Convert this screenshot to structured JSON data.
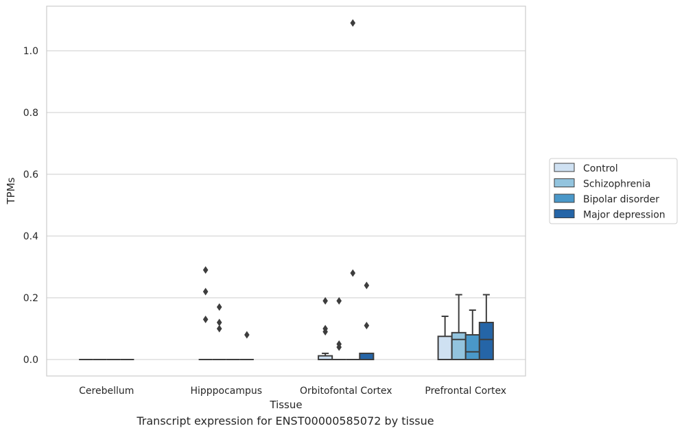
{
  "caption": "Transcript expression for ENST00000585072 by tissue",
  "chart_data": {
    "type": "box",
    "title": "",
    "xlabel": "Tissue",
    "ylabel": "TPMs",
    "ylim": [
      -0.05,
      1.15
    ],
    "yticks": [
      0.0,
      0.2,
      0.4,
      0.6,
      0.8,
      1.0
    ],
    "ytick_labels": [
      "0.0",
      "0.2",
      "0.4",
      "0.6",
      "0.8",
      "1.0"
    ],
    "grid": "y",
    "legend_position": "right",
    "categories": [
      "Cerebellum",
      "Hipppocampus",
      "Orbitofontal Cortex",
      "Prefrontal Cortex"
    ],
    "series": [
      {
        "name": "Control",
        "color": "#cfe1f2",
        "boxes": [
          {
            "q1": 0,
            "median": 0,
            "q3": 0,
            "whisker_low": 0,
            "whisker_high": 0,
            "outliers": []
          },
          {
            "q1": 0,
            "median": 0,
            "q3": 0,
            "whisker_low": 0,
            "whisker_high": 0,
            "outliers": [
              0.13,
              0.22,
              0.29
            ]
          },
          {
            "q1": 0,
            "median": 0,
            "q3": 0.012,
            "whisker_low": 0,
            "whisker_high": 0.02,
            "outliers": [
              0.09,
              0.1,
              0.19
            ]
          },
          {
            "q1": 0,
            "median": 0,
            "q3": 0.075,
            "whisker_low": 0,
            "whisker_high": 0.14,
            "outliers": []
          }
        ]
      },
      {
        "name": "Schizophrenia",
        "color": "#93c4de",
        "boxes": [
          {
            "q1": 0,
            "median": 0,
            "q3": 0,
            "whisker_low": 0,
            "whisker_high": 0,
            "outliers": []
          },
          {
            "q1": 0,
            "median": 0,
            "q3": 0,
            "whisker_low": 0,
            "whisker_high": 0,
            "outliers": [
              0.1,
              0.12,
              0.17
            ]
          },
          {
            "q1": 0,
            "median": 0,
            "q3": 0,
            "whisker_low": 0,
            "whisker_high": 0,
            "outliers": [
              0.04,
              0.05,
              0.19
            ]
          },
          {
            "q1": 0,
            "median": 0.065,
            "q3": 0.087,
            "whisker_low": 0,
            "whisker_high": 0.21,
            "outliers": []
          }
        ]
      },
      {
        "name": "Bipolar disorder",
        "color": "#4a98c9",
        "boxes": [
          {
            "q1": 0,
            "median": 0,
            "q3": 0,
            "whisker_low": 0,
            "whisker_high": 0,
            "outliers": []
          },
          {
            "q1": 0,
            "median": 0,
            "q3": 0,
            "whisker_low": 0,
            "whisker_high": 0,
            "outliers": []
          },
          {
            "q1": 0,
            "median": 0,
            "q3": 0,
            "whisker_low": 0,
            "whisker_high": 0,
            "outliers": [
              0.28,
              1.09
            ]
          },
          {
            "q1": 0,
            "median": 0.025,
            "q3": 0.08,
            "whisker_low": 0,
            "whisker_high": 0.16,
            "outliers": []
          }
        ]
      },
      {
        "name": "Major depression",
        "color": "#2565a7",
        "boxes": [
          {
            "q1": 0,
            "median": 0,
            "q3": 0,
            "whisker_low": 0,
            "whisker_high": 0,
            "outliers": []
          },
          {
            "q1": 0,
            "median": 0,
            "q3": 0,
            "whisker_low": 0,
            "whisker_high": 0,
            "outliers": [
              0.08
            ]
          },
          {
            "q1": 0,
            "median": 0,
            "q3": 0.02,
            "whisker_low": 0,
            "whisker_high": 0.02,
            "outliers": [
              0.11,
              0.24
            ]
          },
          {
            "q1": 0,
            "median": 0.065,
            "q3": 0.12,
            "whisker_low": 0,
            "whisker_high": 0.21,
            "outliers": []
          }
        ]
      }
    ]
  }
}
